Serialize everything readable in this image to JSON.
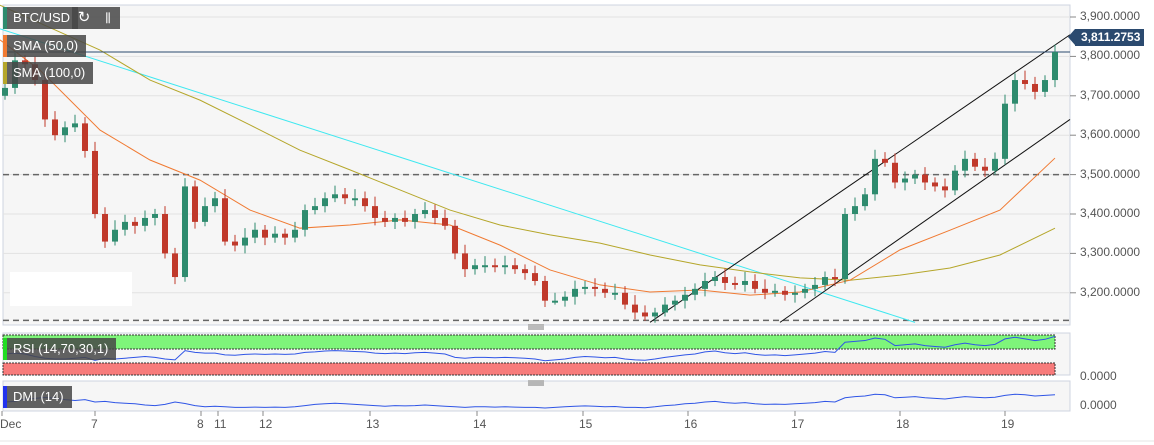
{
  "header": {
    "symbol": "BTC/USD",
    "refresh_icon": "refresh-icon",
    "indicators_icon": "chart-indicators-icon"
  },
  "indicators": {
    "sma50": "SMA (50,0)",
    "sma100": "SMA (100,0)",
    "rsi": "RSI (14,70,30,1)",
    "dmi": "DMI (14)"
  },
  "colors": {
    "up": "#2e8b6e",
    "down": "#c0392b",
    "sma50": "#f07a32",
    "sma100": "#b5a62a",
    "trend": "#3ee8f0",
    "channel": "#111111",
    "price_line": "#2b4a6f",
    "rsi_line": "#2f55e6",
    "rsi_over": "#7ef57a",
    "rsi_under": "#f77b7b"
  },
  "price_axis": {
    "labels": [
      "3,900.0000",
      "3,800.0000",
      "3,700.0000",
      "3,600.0000",
      "3,500.0000",
      "3,400.0000",
      "3,300.0000",
      "3,200.0000"
    ],
    "current": "3,811.2753",
    "rsi_zero": "0.0000",
    "dmi_zero": "0.0000"
  },
  "time_axis": {
    "labels": [
      "Dec",
      "7",
      "8",
      "11",
      "12",
      "13",
      "14",
      "15",
      "16",
      "17",
      "18",
      "19"
    ]
  },
  "chart_data": {
    "type": "candlestick",
    "title": "BTC/USD",
    "ylim": [
      3125,
      3930
    ],
    "yticks": [
      3900,
      3800,
      3700,
      3600,
      3500,
      3400,
      3300,
      3200
    ],
    "current_price": 3811.2753,
    "support_dashed": [
      3500,
      3130
    ],
    "closes": [
      3720,
      3790,
      3780,
      3740,
      3640,
      3600,
      3620,
      3630,
      3560,
      3400,
      3330,
      3360,
      3380,
      3370,
      3390,
      3400,
      3300,
      3240,
      3470,
      3380,
      3420,
      3440,
      3330,
      3320,
      3340,
      3360,
      3340,
      3350,
      3340,
      3360,
      3410,
      3420,
      3440,
      3450,
      3440,
      3440,
      3420,
      3390,
      3380,
      3390,
      3380,
      3400,
      3410,
      3390,
      3370,
      3300,
      3260,
      3270,
      3270,
      3265,
      3270,
      3260,
      3250,
      3230,
      3180,
      3180,
      3190,
      3210,
      3215,
      3210,
      3200,
      3200,
      3170,
      3150,
      3140,
      3150,
      3170,
      3180,
      3195,
      3210,
      3230,
      3240,
      3225,
      3220,
      3230,
      3210,
      3200,
      3205,
      3195,
      3200,
      3210,
      3220,
      3240,
      3235,
      3400,
      3420,
      3450,
      3540,
      3530,
      3480,
      3490,
      3500,
      3480,
      3470,
      3460,
      3510,
      3540,
      3520,
      3510,
      3540,
      3680,
      3740,
      3730,
      3710,
      3740,
      3811
    ],
    "sma50": {
      "index": [
        -0.5,
        3.5,
        9.5,
        14.5,
        19.5,
        24.5,
        29.5,
        34.5,
        39.5,
        44.5,
        49.5,
        54.5,
        59.5,
        64.5,
        69.5,
        74.5,
        79.5,
        84.5,
        89.5,
        94.5,
        99.5,
        105
      ],
      "values": [
        3842,
        3765,
        3613,
        3537,
        3486,
        3410,
        3364,
        3372,
        3385,
        3372,
        3321,
        3258,
        3220,
        3202,
        3207,
        3194,
        3202,
        3232,
        3309,
        3359,
        3410,
        3542
      ]
    },
    "sma100": {
      "index": [
        -0.5,
        9.5,
        14.5,
        19.5,
        24.5,
        29.5,
        34.5,
        39.5,
        44.5,
        49.5,
        54.5,
        59.5,
        64.5,
        69.5,
        74.5,
        79.5,
        84.5,
        89.5,
        94.5,
        99.5,
        105
      ],
      "values": [
        3930,
        3816,
        3740,
        3689,
        3626,
        3562,
        3512,
        3461,
        3410,
        3372,
        3347,
        3326,
        3296,
        3271,
        3253,
        3238,
        3232,
        3245,
        3263,
        3296,
        3364
      ]
    },
    "trendline": {
      "index": [
        -0.5,
        91
      ],
      "values": [
        3870,
        3125
      ]
    },
    "channel_upper": {
      "index": [
        64.5,
        106.5
      ],
      "values": [
        3125,
        3855
      ]
    },
    "channel_lower": {
      "index": [
        77.5,
        106.5
      ],
      "values": [
        3125,
        3640
      ]
    },
    "rsi": [
      50,
      52,
      50,
      44,
      40,
      38,
      38,
      40,
      42,
      35,
      40,
      38,
      40,
      42,
      44,
      42,
      38,
      36,
      58,
      54,
      52,
      52,
      48,
      47,
      49,
      50,
      49,
      50,
      49,
      50,
      54,
      55,
      57,
      58,
      57,
      56,
      55,
      52,
      51,
      52,
      51,
      53,
      54,
      52,
      50,
      42,
      40,
      42,
      42,
      41,
      42,
      41,
      40,
      38,
      34,
      36,
      38,
      42,
      44,
      43,
      41,
      42,
      38,
      36,
      35,
      38,
      42,
      45,
      48,
      50,
      55,
      57,
      53,
      51,
      53,
      49,
      47,
      48,
      46,
      48,
      50,
      52,
      56,
      54,
      78,
      80,
      82,
      88,
      85,
      70,
      72,
      74,
      70,
      68,
      66,
      72,
      76,
      72,
      70,
      73,
      86,
      90,
      86,
      82,
      85,
      92
    ],
    "dmi": [
      30,
      32,
      40,
      42,
      45,
      43,
      38,
      35,
      38,
      30,
      32,
      28,
      26,
      24,
      20,
      18,
      22,
      30,
      25,
      18,
      14,
      16,
      14,
      12,
      12,
      13,
      12,
      13,
      12,
      14,
      18,
      22,
      24,
      26,
      24,
      22,
      20,
      18,
      16,
      18,
      17,
      18,
      20,
      18,
      16,
      14,
      12,
      14,
      14,
      13,
      14,
      13,
      12,
      12,
      10,
      12,
      14,
      16,
      17,
      16,
      14,
      15,
      12,
      12,
      11,
      14,
      18,
      20,
      24,
      26,
      30,
      32,
      28,
      26,
      28,
      24,
      22,
      23,
      22,
      24,
      26,
      28,
      32,
      30,
      44,
      48,
      50,
      56,
      54,
      44,
      46,
      48,
      44,
      42,
      40,
      44,
      48,
      46,
      44,
      46,
      52,
      56,
      54,
      50,
      52,
      54
    ]
  }
}
